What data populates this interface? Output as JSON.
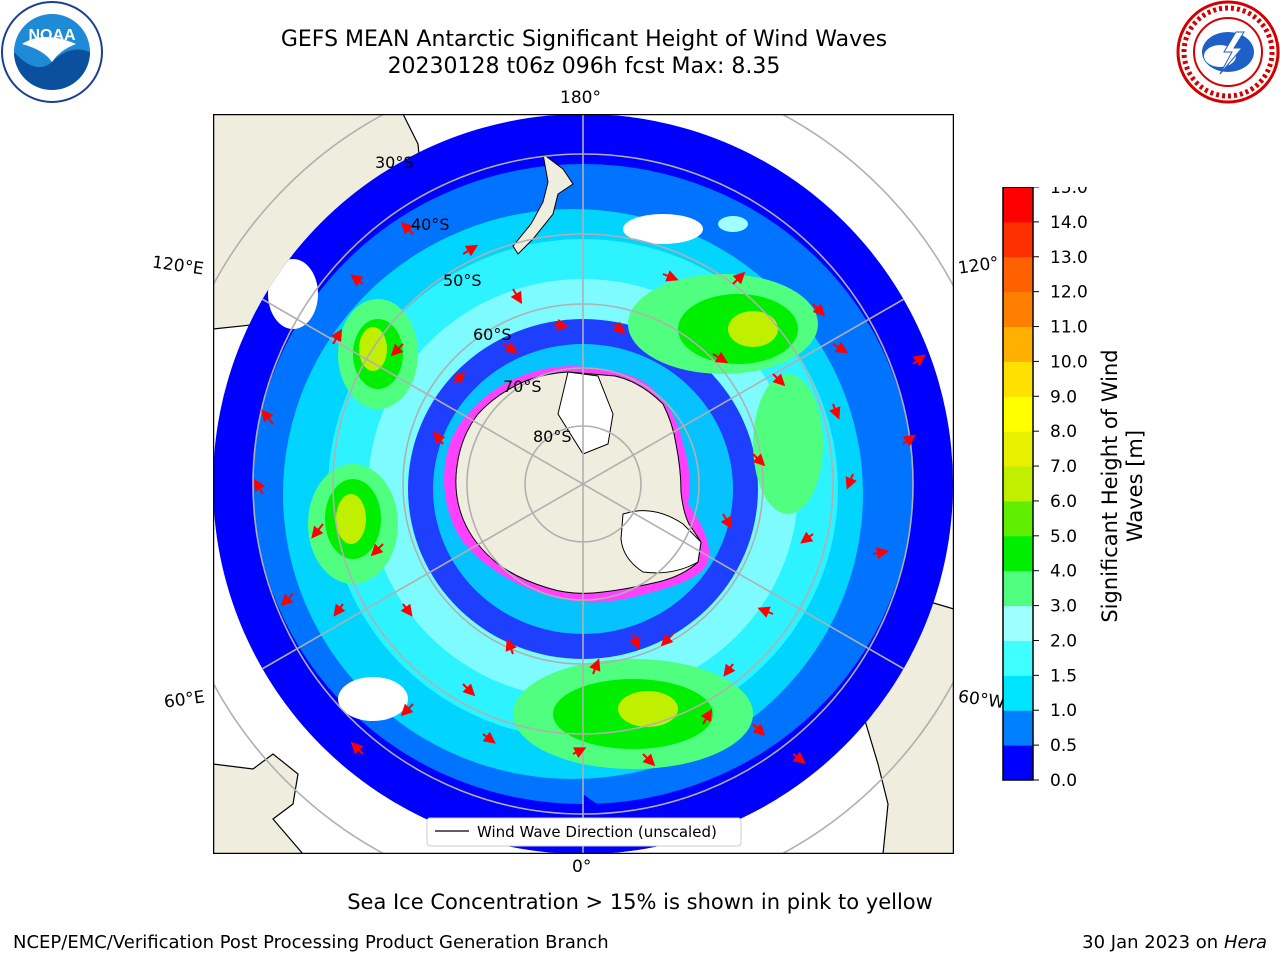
{
  "header": {
    "title_line1": "GEFS MEAN Antarctic Significant Height of Wind Waves",
    "title_line2": "20230128 t06z 096h fcst   Max: 8.35"
  },
  "logos": {
    "noaa": {
      "text": "NOAA",
      "icon": "noaa-logo"
    },
    "nws": {
      "icon": "nws-logo"
    }
  },
  "map": {
    "projection": "south-polar-stereographic",
    "lon_labels": {
      "top": "180°",
      "bottom": "0°",
      "left_upper": "120°E",
      "left_lower": "60°E",
      "right_upper": "120°",
      "right_lower": "60°W"
    },
    "lat_labels": [
      "30°S",
      "40°S",
      "50°S",
      "60°S",
      "70°S",
      "80°S"
    ],
    "legend": "Wind Wave Direction (unscaled)",
    "colors": {
      "ocean_min": "#0000ff",
      "land": "#efedde",
      "ice": "#ff40ff",
      "arrow": "#ff0000",
      "grid": "#b0b0b0"
    }
  },
  "colorbar": {
    "label": "Significant Height of Wind Waves [m]",
    "ticks": [
      "0.0",
      "0.5",
      "1.0",
      "1.5",
      "2.0",
      "3.0",
      "4.0",
      "5.0",
      "6.0",
      "7.0",
      "8.0",
      "9.0",
      "10.0",
      "11.0",
      "12.0",
      "13.0",
      "14.0",
      "15.0"
    ],
    "colors": [
      "#0000ff",
      "#0080ff",
      "#00e5ff",
      "#40ffff",
      "#a0ffff",
      "#50ff80",
      "#00ee00",
      "#60ee00",
      "#c0f000",
      "#e8f000",
      "#ffff00",
      "#ffe000",
      "#ffb000",
      "#ff8000",
      "#ff6000",
      "#ff3000",
      "#ff0000"
    ]
  },
  "footer": {
    "note": "Sea Ice Concentration > 15% is shown in pink to yellow",
    "credit": "NCEP/EMC/Verification Post Processing Product Generation Branch",
    "date": "30 Jan 2023 on",
    "machine": "Hera"
  }
}
